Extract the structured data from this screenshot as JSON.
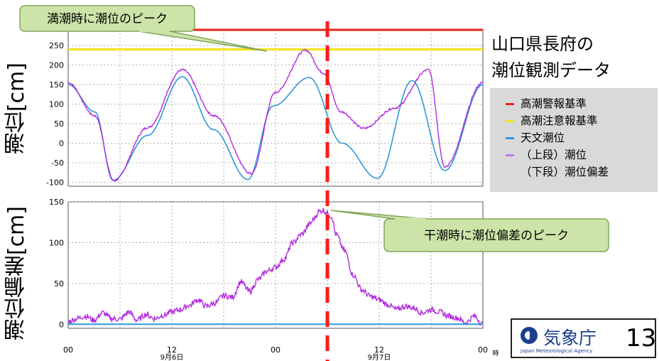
{
  "chart_data": [
    {
      "type": "line",
      "ylabel": "潮位[cm]",
      "ylim": [
        -110,
        290
      ],
      "yticks": [
        -100,
        -50,
        0,
        50,
        100,
        150,
        200,
        250
      ],
      "xlim": [
        0,
        48
      ],
      "thresholds": [
        {
          "name": "高潮警報基準",
          "value": 290,
          "color": "#e8231a"
        },
        {
          "name": "高潮注意報基準",
          "value": 240,
          "color": "#f3e21a"
        }
      ],
      "series": [
        {
          "name": "天文潮位",
          "color": "#2f98d6",
          "x": [
            0,
            3.1,
            5.2,
            9.2,
            13.2,
            16.8,
            20.8,
            23.7,
            27.9,
            31.7,
            35.8,
            39.8,
            43.6,
            48
          ],
          "y": [
            150,
            80,
            -95,
            20,
            170,
            35,
            -93,
            95,
            168,
            0,
            -90,
            160,
            -70,
            150
          ]
        },
        {
          "name": "（上段）潮位",
          "color": "#b22be0",
          "x": [
            0,
            3.1,
            5.3,
            9.2,
            13.2,
            16.9,
            21.2,
            24,
            27.5,
            29.5,
            31.6,
            34.2,
            37.8,
            41.7,
            43.6,
            48
          ],
          "y": [
            155,
            70,
            -96,
            40,
            188,
            70,
            -78,
            130,
            238,
            180,
            80,
            38,
            90,
            188,
            -60,
            155
          ]
        }
      ]
    },
    {
      "type": "line",
      "ylabel": "潮位偏差[cm]",
      "ylim": [
        -5,
        150
      ],
      "yticks": [
        0,
        50,
        100,
        150
      ],
      "xlim": [
        0,
        48
      ],
      "xticks": [
        {
          "x": 0,
          "label": "00",
          "sub": ""
        },
        {
          "x": 12,
          "label": "12",
          "sub": "9月6日"
        },
        {
          "x": 24,
          "label": "00",
          "sub": ""
        },
        {
          "x": 36,
          "label": "12",
          "sub": "9月7日"
        },
        {
          "x": 48,
          "label": "00",
          "sub": ""
        }
      ],
      "xunit": "時",
      "series": [
        {
          "name": "（下段）潮位偏差",
          "color": "#b22be0",
          "x": [
            0,
            1,
            2,
            3,
            4,
            5,
            6,
            7,
            8,
            9,
            10,
            11,
            12,
            13,
            14,
            15,
            16,
            17,
            18,
            19,
            20,
            21,
            22,
            23,
            24,
            25,
            26,
            27,
            28,
            28.5,
            29,
            29.5,
            30,
            30.5,
            31,
            32,
            33,
            34,
            35,
            36,
            37,
            38,
            39,
            40,
            41,
            42,
            43,
            44,
            45,
            46,
            47,
            48
          ],
          "y": [
            3,
            7,
            10,
            5,
            14,
            7,
            6,
            15,
            5,
            12,
            7,
            11,
            15,
            18,
            23,
            30,
            22,
            26,
            35,
            33,
            52,
            40,
            55,
            65,
            70,
            80,
            100,
            110,
            123,
            130,
            138,
            140,
            136,
            132,
            110,
            90,
            60,
            42,
            34,
            30,
            24,
            18,
            22,
            20,
            14,
            18,
            15,
            10,
            8,
            2,
            10,
            0
          ]
        },
        {
          "name": "zero",
          "color": "#2f98d6",
          "x": [
            0,
            48
          ],
          "y": [
            0,
            0
          ]
        }
      ]
    }
  ],
  "title_lines": [
    "山口県長府の",
    "潮位観測データ"
  ],
  "legend": [
    {
      "label": "高潮警報基準",
      "color": "#e8231a"
    },
    {
      "label": "高潮注意報基準",
      "color": "#f3e21a"
    },
    {
      "label": "天文潮位",
      "color": "#2f98d6"
    },
    {
      "label": "（上段）潮位",
      "color": "#c27ae8"
    },
    {
      "label": "（下段）潮位偏差",
      "color": ""
    }
  ],
  "callouts": {
    "top": "満潮時に潮位のピーク",
    "bottom": "干潮時に潮位偏差のピーク"
  },
  "marker_time": 30,
  "logo": {
    "name_jp": "気象庁",
    "name_en": "Japan Meteorological Agency",
    "page_number": "13"
  },
  "colors": {
    "callout_fill": "#cde4a8",
    "callout_border": "#7fa55a",
    "marker": "#ff1a1a"
  }
}
